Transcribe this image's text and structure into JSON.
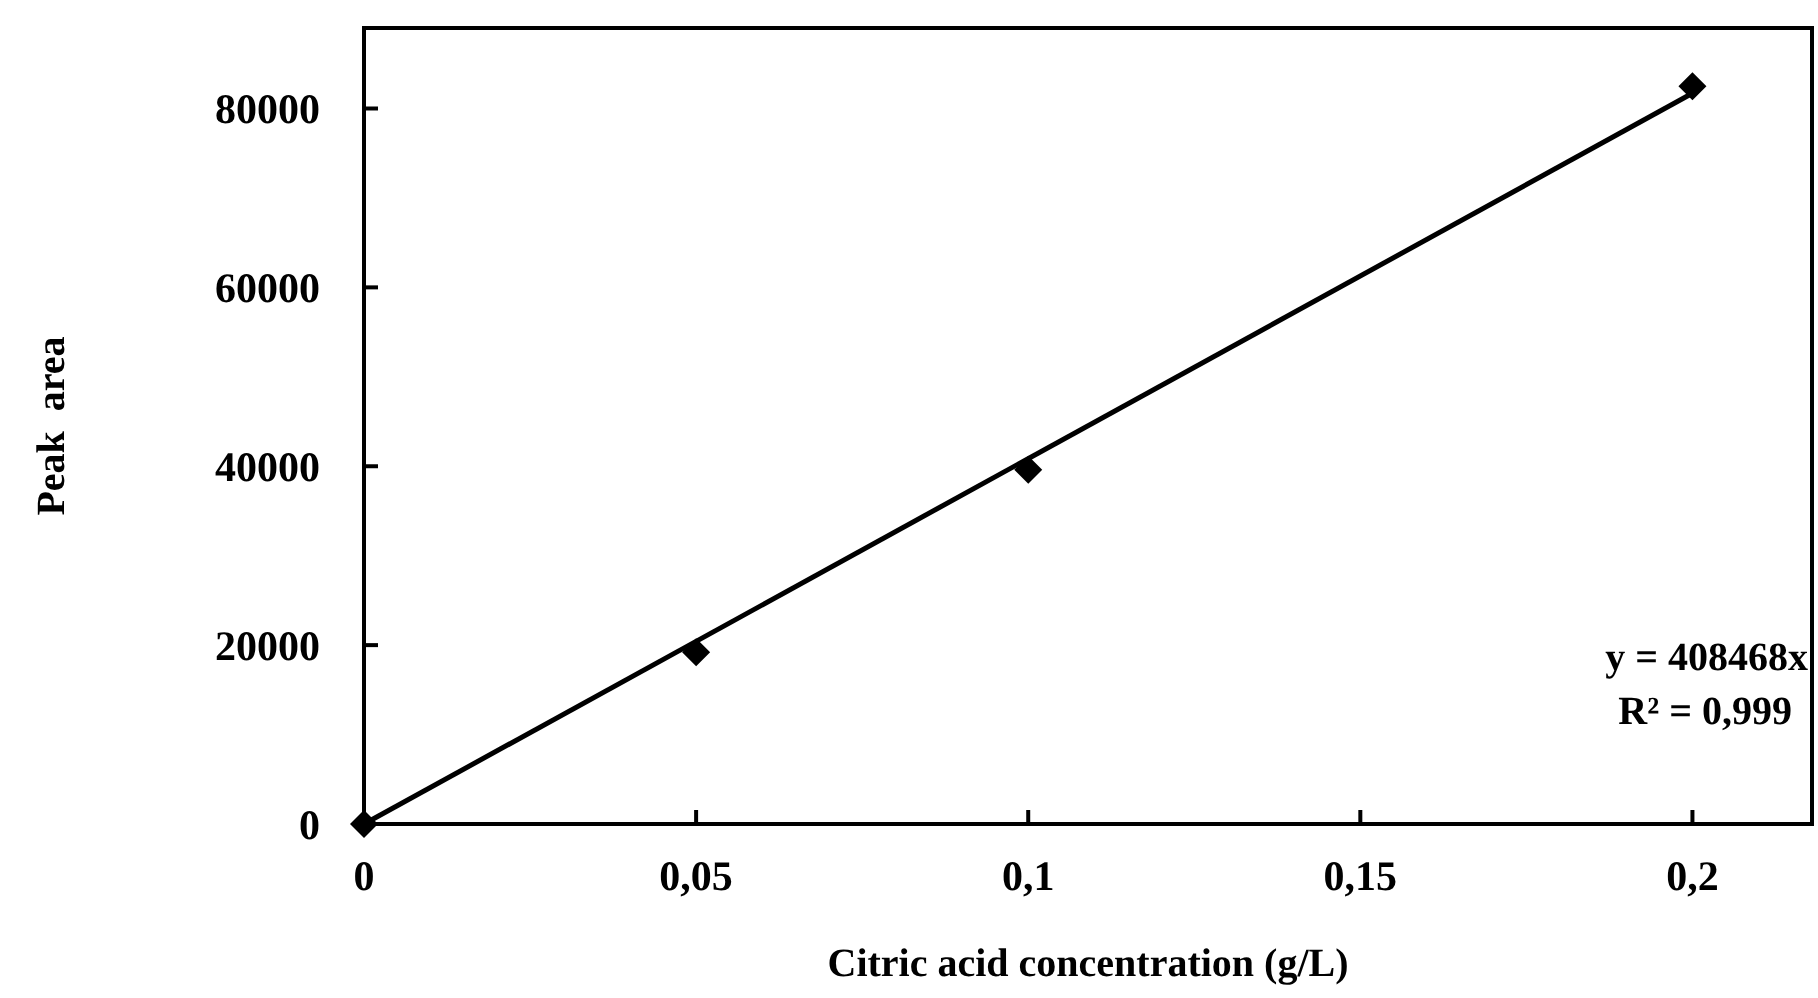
{
  "chart_data": {
    "type": "scatter",
    "xlabel": "Citric acid concentration (g/L)",
    "ylabel": "Peak  area",
    "xlim": [
      0,
      0.218
    ],
    "ylim": [
      0,
      89000
    ],
    "xticks": [
      0,
      {
        "value": 0.05,
        "label": "0,05"
      },
      {
        "value": 0.1,
        "label": "0,1"
      },
      {
        "value": 0.15,
        "label": "0,15"
      },
      {
        "value": 0.2,
        "label": "0,2"
      }
    ],
    "yticks": [
      0,
      20000,
      40000,
      60000,
      80000
    ],
    "grid": false,
    "marker": "diamond",
    "series": [
      {
        "color": "#000000",
        "x": [
          0,
          0.05,
          0.1,
          0.2
        ],
        "values": [
          0,
          19200,
          39600,
          82500
        ]
      },
      {
        "type": "line",
        "color": "#000000",
        "x": [
          0,
          0.2
        ],
        "values": [
          0,
          81700
        ],
        "marker": "none",
        "line_style": "solid"
      }
    ],
    "annotations": [
      "y = 408468x",
      "R² = 0,999"
    ]
  }
}
